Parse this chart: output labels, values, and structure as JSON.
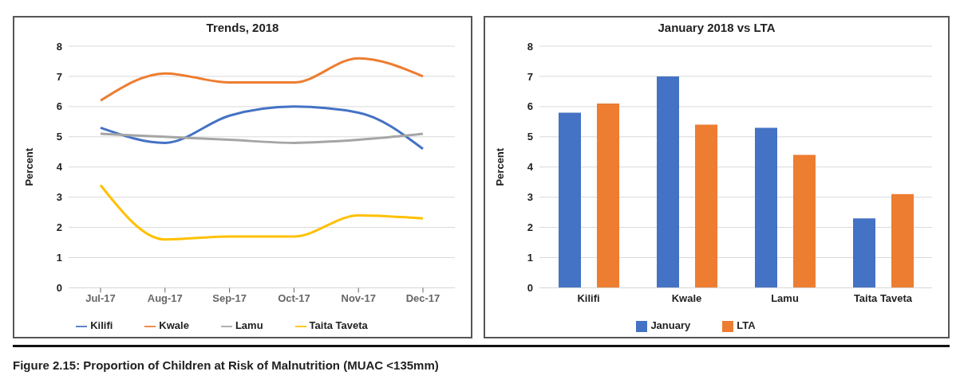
{
  "chart_data": [
    {
      "type": "line",
      "title": "Trends, 2018",
      "ylabel": "Percent",
      "categories": [
        "Jul-17",
        "Aug-17",
        "Sep-17",
        "Oct-17",
        "Nov-17",
        "Dec-17"
      ],
      "series": [
        {
          "name": "Kilifi",
          "color": "#4472c4",
          "values": [
            5.3,
            4.8,
            5.7,
            6.0,
            5.8,
            4.6
          ]
        },
        {
          "name": "Kwale",
          "color": "#ed7d31",
          "values": [
            6.2,
            7.1,
            6.8,
            6.8,
            7.6,
            7.0
          ]
        },
        {
          "name": "Lamu",
          "color": "#a5a5a5",
          "values": [
            5.1,
            5.0,
            4.9,
            4.8,
            4.9,
            5.1
          ]
        },
        {
          "name": "Taita Taveta",
          "color": "#ffc000",
          "values": [
            3.4,
            1.6,
            1.7,
            1.7,
            2.4,
            2.3
          ]
        }
      ],
      "ylim": [
        0,
        8
      ],
      "yticks": [
        0,
        1,
        2,
        3,
        4,
        5,
        6,
        7,
        8
      ],
      "grid": "y",
      "legend": "bottom",
      "marker": "none",
      "annotations": [
        "Figure 2.15:  Proportion of Children at Risk of Malnutrition (MUAC <135mm)"
      ]
    },
    {
      "type": "bar",
      "title": "January 2018 vs LTA",
      "ylabel": "Percent",
      "categories": [
        "Kilifi",
        "Kwale",
        "Lamu",
        "Taita Taveta"
      ],
      "series": [
        {
          "name": "January",
          "color": "#4472c4",
          "values": [
            5.8,
            7.0,
            5.3,
            2.3
          ]
        },
        {
          "name": "LTA",
          "color": "#ed7d31",
          "values": [
            6.1,
            5.4,
            4.4,
            3.1
          ]
        }
      ],
      "ylim": [
        0,
        8
      ],
      "yticks": [
        0,
        1,
        2,
        3,
        4,
        5,
        6,
        7,
        8
      ],
      "grid": "y",
      "legend": "bottom"
    }
  ]
}
